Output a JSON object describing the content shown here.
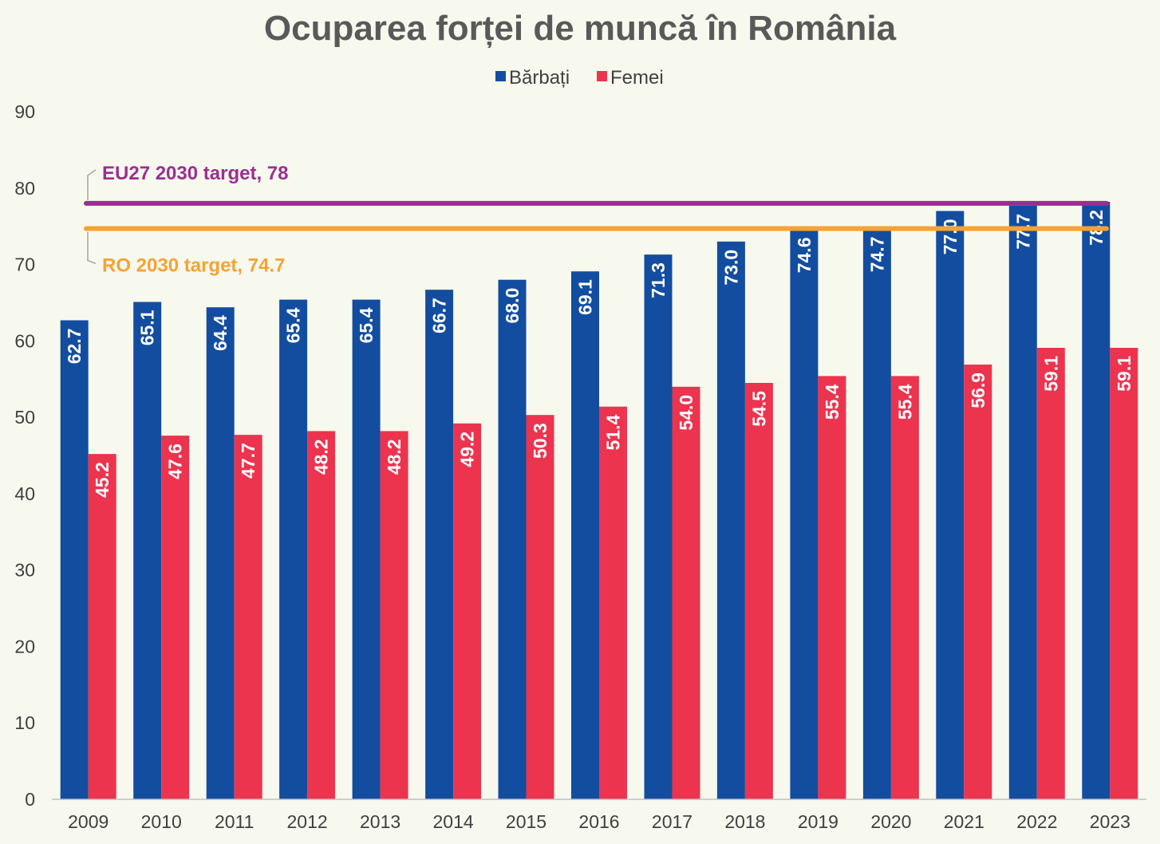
{
  "chart_data": {
    "type": "bar",
    "title": "Ocuparea forței de muncă în România",
    "categories": [
      "2009",
      "2010",
      "2011",
      "2012",
      "2013",
      "2014",
      "2015",
      "2016",
      "2017",
      "2018",
      "2019",
      "2020",
      "2021",
      "2022",
      "2023"
    ],
    "series": [
      {
        "name": "Bărbați",
        "color": "#134da0",
        "values": [
          62.7,
          65.1,
          64.4,
          65.4,
          65.4,
          66.7,
          68.0,
          69.1,
          71.3,
          73.0,
          74.6,
          74.7,
          77.0,
          77.7,
          78.2
        ]
      },
      {
        "name": "Femei",
        "color": "#ec344f",
        "values": [
          45.2,
          47.6,
          47.7,
          48.2,
          48.2,
          49.2,
          50.3,
          51.4,
          54.0,
          54.5,
          55.4,
          55.4,
          56.9,
          59.1,
          59.1
        ]
      }
    ],
    "yticks": [
      0,
      10,
      20,
      30,
      40,
      50,
      60,
      70,
      80,
      90
    ],
    "ylim": [
      0,
      90
    ],
    "legend_position": "top-center",
    "reference_lines": [
      {
        "label": "EU27 2030 target, 78",
        "value": 78,
        "color": "#9b2f91",
        "label_position": "above"
      },
      {
        "label": "RO 2030 target, 74.7",
        "value": 74.7,
        "color": "#f7a233",
        "label_position": "below"
      }
    ],
    "xlabel": "",
    "ylabel": ""
  }
}
